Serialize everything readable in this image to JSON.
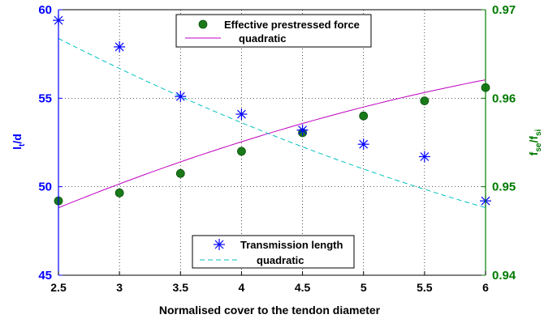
{
  "chart_data": {
    "type": "line",
    "xlabel": "Normalised cover to the tendon diameter",
    "ylabel_left": {
      "main": "l",
      "sub": "t",
      "rest": "/d"
    },
    "ylabel_right": {
      "main": "f",
      "sub1": "se",
      "mid": "/f",
      "sub2": "si"
    },
    "xlim": [
      2.5,
      6
    ],
    "ylim_left": [
      45,
      60
    ],
    "ylim_right": [
      0.94,
      0.97
    ],
    "x_ticks": [
      "2.5",
      "3",
      "3.5",
      "4",
      "4.5",
      "5",
      "5.5",
      "6"
    ],
    "y_ticks_left": [
      "45",
      "50",
      "55",
      "60"
    ],
    "y_ticks_right": [
      "0.94",
      "0.95",
      "0.96",
      "0.97"
    ],
    "grid": true,
    "series": [
      {
        "name": "Effective prestressed force",
        "axis": "right",
        "marker": "circle",
        "x": [
          2.5,
          3,
          3.5,
          4,
          4.5,
          5,
          5.5,
          6
        ],
        "y": [
          0.9484,
          0.9493,
          0.9515,
          0.954,
          0.9561,
          0.958,
          0.9597,
          0.9612
        ]
      },
      {
        "name": "quadratic",
        "axis": "right",
        "style": "solid",
        "coef": [
          -0.00042,
          0.0077,
          0.931
        ],
        "x_range": [
          2.5,
          6
        ]
      },
      {
        "name": "Transmission length",
        "axis": "left",
        "marker": "asterisk",
        "x": [
          2.5,
          3,
          3.5,
          4,
          4.5,
          5,
          5.5,
          6
        ],
        "y": [
          59.4,
          57.9,
          55.1,
          54.1,
          53.2,
          52.4,
          51.7,
          49.2
        ]
      },
      {
        "name": "quadratic",
        "axis": "left",
        "style": "dashed",
        "coef": [
          0.22,
          -4.6,
          68.5
        ],
        "x_range": [
          2.5,
          6
        ]
      }
    ],
    "legend_top": [
      "Effective prestressed force",
      "quadratic"
    ],
    "legend_bottom": [
      "Transmission length",
      "quadratic"
    ],
    "colors": {
      "left_axis": "#0000ff",
      "right_axis": "#007a00",
      "circle_marker": "#1a7a1a",
      "asterisk_marker": "#0000ff",
      "solid_fit": "#c000c0",
      "dashed_fit": "#00c0c0"
    }
  }
}
